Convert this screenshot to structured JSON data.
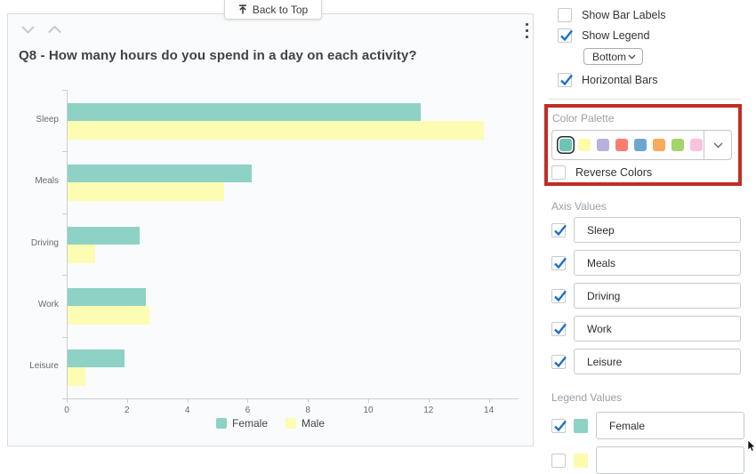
{
  "back_to_top": {
    "label": "Back to Top",
    "icon": "arrow-to-top-icon"
  },
  "chart_panel": {
    "title": "Q8 - How many hours do you spend in a day on each activity?"
  },
  "chart_data": {
    "type": "bar",
    "orientation": "horizontal",
    "title": "Q8 - How many hours do you spend in a day on each activity?",
    "categories": [
      "Sleep",
      "Meals",
      "Driving",
      "Work",
      "Leisure"
    ],
    "series": [
      {
        "name": "Female",
        "color": "#8DD2C5",
        "values": [
          11.7,
          6.1,
          2.4,
          2.6,
          1.9
        ]
      },
      {
        "name": "Male",
        "color": "#FCFCB2",
        "values": [
          13.8,
          5.2,
          0.9,
          2.7,
          0.6
        ]
      }
    ],
    "x_ticks": [
      "0",
      "2",
      "4",
      "6",
      "8",
      "10",
      "12",
      "14"
    ],
    "xlim": [
      0,
      14
    ],
    "xlabel": "",
    "ylabel": "",
    "legend_position": "bottom",
    "grid": false
  },
  "settings": {
    "show_bar_labels": {
      "label": "Show Bar Labels",
      "checked": false
    },
    "show_legend": {
      "label": "Show Legend",
      "checked": true
    },
    "legend_position_dropdown": {
      "value": "Bottom"
    },
    "horizontal_bars": {
      "label": "Horizontal Bars",
      "checked": true
    },
    "color_palette": {
      "label": "Color Palette",
      "selected_index": 0,
      "swatches": [
        "#6FC5B5",
        "#FBFBA9",
        "#B7B1DC",
        "#F97E70",
        "#6FA6CE",
        "#FBA95B",
        "#A3D56B",
        "#F9C3DE"
      ]
    },
    "reverse_colors": {
      "label": "Reverse Colors",
      "checked": false
    },
    "axis_values": {
      "label": "Axis Values",
      "items": [
        {
          "label": "Sleep",
          "checked": true
        },
        {
          "label": "Meals",
          "checked": true
        },
        {
          "label": "Driving",
          "checked": true
        },
        {
          "label": "Work",
          "checked": true
        },
        {
          "label": "Leisure",
          "checked": true
        }
      ]
    },
    "legend_values": {
      "label": "Legend Values",
      "items": [
        {
          "label": "Female",
          "checked": true,
          "color": "#8DD2C5"
        }
      ]
    }
  },
  "annotation": {
    "highlight_border_color": "#BF2E25"
  }
}
